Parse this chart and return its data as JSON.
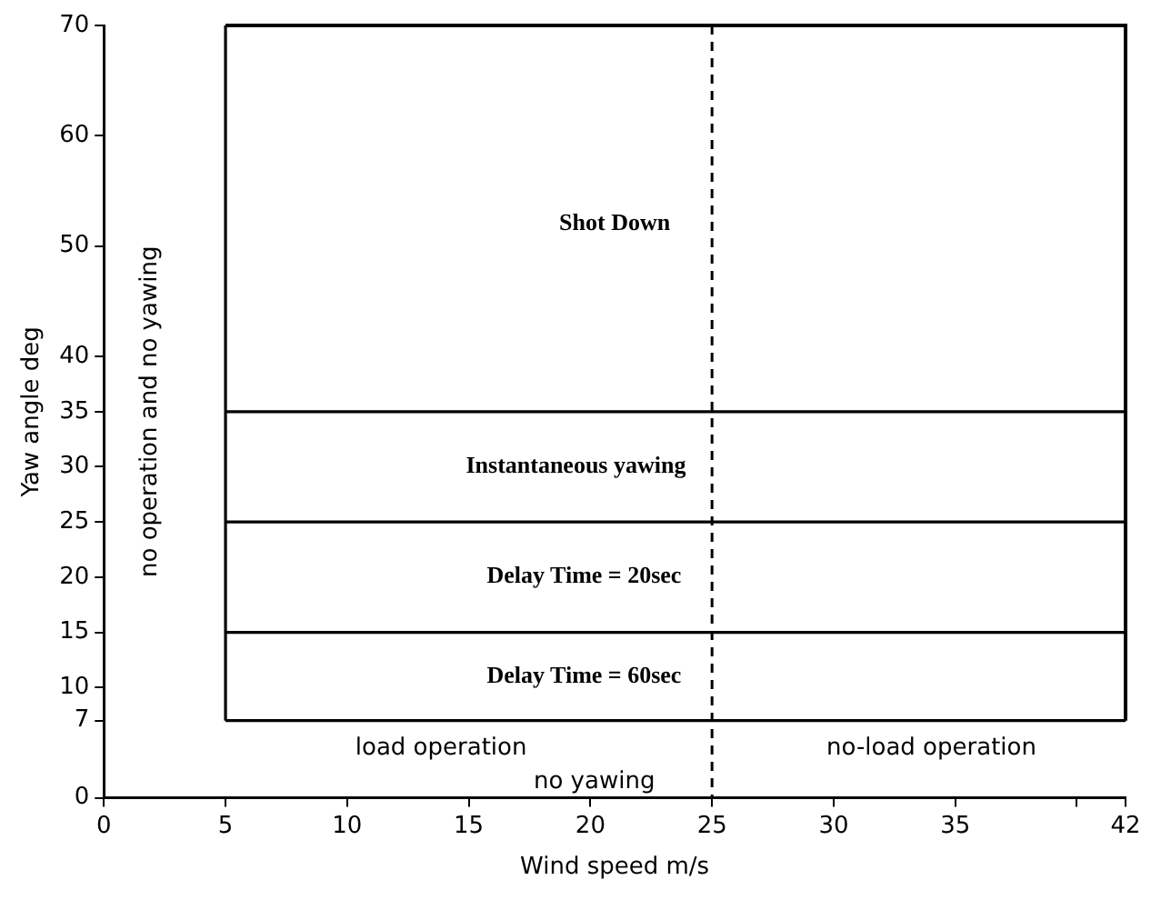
{
  "chart_data": {
    "type": "line",
    "xlabel": "Wind speed m/s",
    "ylabel": "Yaw angle deg",
    "xlim": [
      0,
      42
    ],
    "xticks": [
      0,
      5,
      10,
      15,
      20,
      25,
      30,
      35,
      {
        "value": 40,
        "label": null
      },
      42
    ],
    "ylim": [
      0,
      70
    ],
    "yticks": [
      0,
      7,
      10,
      15,
      20,
      25,
      30,
      35,
      40,
      50,
      60,
      70
    ],
    "ref_lines": [
      {
        "axis": "x",
        "value": 5,
        "color": "#000000",
        "line_style": "solid"
      },
      {
        "axis": "x",
        "value": 25,
        "color": "#000000",
        "line_style": "dashed"
      },
      {
        "axis": "y",
        "value": 7,
        "color": "#000000",
        "line_style": "solid"
      },
      {
        "axis": "y",
        "value": 15,
        "color": "#000000",
        "line_style": "solid"
      },
      {
        "axis": "y",
        "value": 25,
        "color": "#000000",
        "line_style": "solid"
      },
      {
        "axis": "y",
        "value": 35,
        "color": "#000000",
        "line_style": "solid"
      }
    ],
    "annotations": [
      "Shot Down",
      "Instantaneous yawing",
      "Delay Time = 20sec",
      "Delay Time = 60sec",
      "no operation and no yawing",
      "load operation",
      "no yawing",
      "no-load operation"
    ],
    "legend": false
  }
}
